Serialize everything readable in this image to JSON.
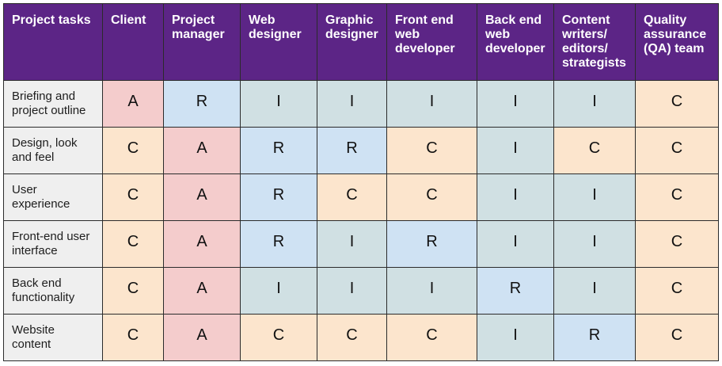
{
  "matrix": {
    "headers": [
      "Project tasks",
      "Client",
      "Project manager",
      "Web designer",
      "Graphic designer",
      "Front end web developer",
      "Back end web developer",
      "Content writers/ editors/ strategists",
      "Quality assurance (QA) team"
    ],
    "rows": [
      {
        "task": "Briefing and project outline",
        "cells": [
          "A",
          "R",
          "I",
          "I",
          "I",
          "I",
          "I",
          "C"
        ]
      },
      {
        "task": "Design, look and feel",
        "cells": [
          "C",
          "A",
          "R",
          "R",
          "C",
          "I",
          "C",
          "C"
        ]
      },
      {
        "task": "User experience",
        "cells": [
          "C",
          "A",
          "R",
          "C",
          "C",
          "I",
          "I",
          "C"
        ]
      },
      {
        "task": "Front-end user interface",
        "cells": [
          "C",
          "A",
          "R",
          "I",
          "R",
          "I",
          "I",
          "C"
        ]
      },
      {
        "task": "Back end functionality",
        "cells": [
          "C",
          "A",
          "I",
          "I",
          "I",
          "R",
          "I",
          "C"
        ]
      },
      {
        "task": "Website content",
        "cells": [
          "C",
          "A",
          "C",
          "C",
          "C",
          "I",
          "R",
          "C"
        ]
      }
    ]
  },
  "colors": {
    "header_bg": "#5c2586",
    "header_text": "#ffffff",
    "task_bg": "#efefef",
    "A": "#f4cccc",
    "R": "#cfe2f3",
    "I": "#d0e0e3",
    "C": "#fce5cd"
  }
}
